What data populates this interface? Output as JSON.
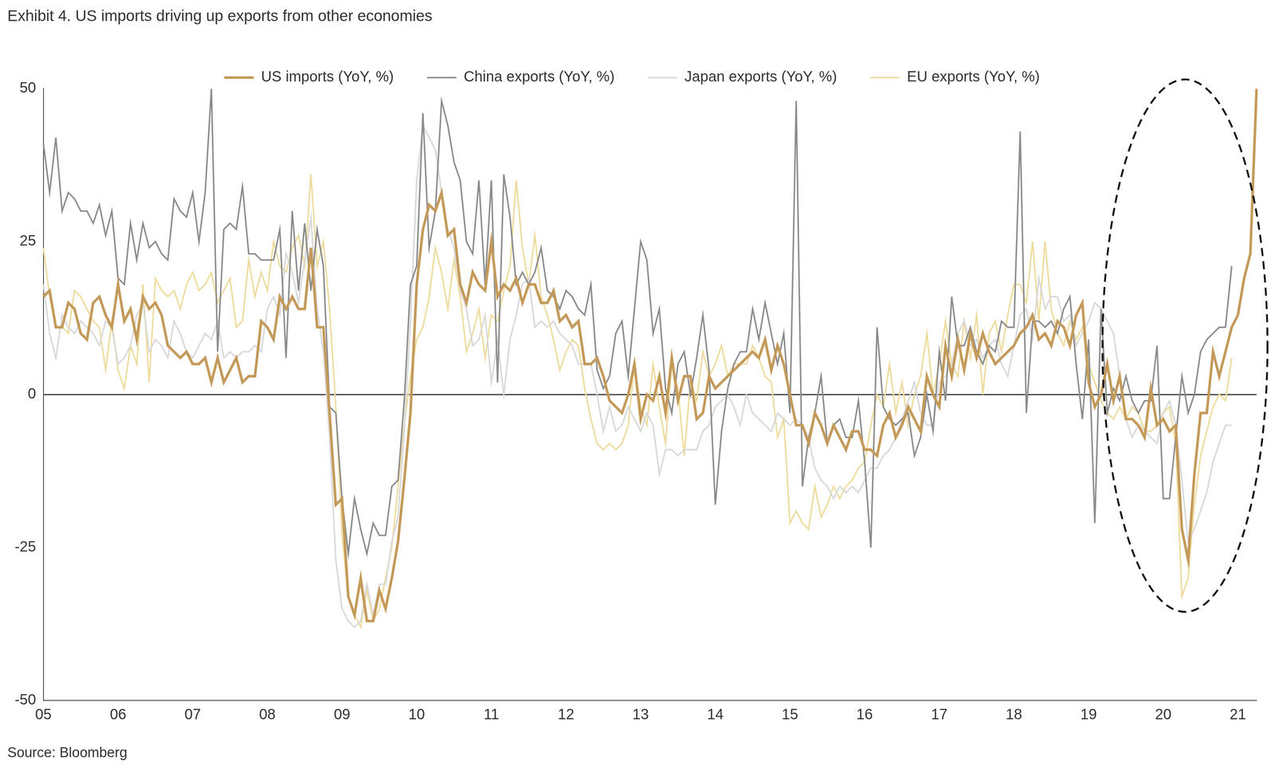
{
  "chart_data": {
    "type": "line",
    "title": "Exhibit 4. US imports driving up exports from other economies",
    "source": "Source: Bloomberg",
    "legend": "top",
    "grid": false,
    "ylim": [
      -50,
      50
    ],
    "yticks": [
      -50,
      -25,
      0,
      25,
      50
    ],
    "categories": [
      "05",
      null,
      null,
      null,
      null,
      null,
      null,
      null,
      null,
      null,
      null,
      null,
      "06",
      null,
      null,
      null,
      null,
      null,
      null,
      null,
      null,
      null,
      null,
      null,
      "07",
      null,
      null,
      null,
      null,
      null,
      null,
      null,
      null,
      null,
      null,
      null,
      "08",
      null,
      null,
      null,
      null,
      null,
      null,
      null,
      null,
      null,
      null,
      null,
      "09",
      null,
      null,
      null,
      null,
      null,
      null,
      null,
      null,
      null,
      null,
      null,
      "10",
      null,
      null,
      null,
      null,
      null,
      null,
      null,
      null,
      null,
      null,
      null,
      "11",
      null,
      null,
      null,
      null,
      null,
      null,
      null,
      null,
      null,
      null,
      null,
      "12",
      null,
      null,
      null,
      null,
      null,
      null,
      null,
      null,
      null,
      null,
      null,
      "13",
      null,
      null,
      null,
      null,
      null,
      null,
      null,
      null,
      null,
      null,
      null,
      "14",
      null,
      null,
      null,
      null,
      null,
      null,
      null,
      null,
      null,
      null,
      null,
      "15",
      null,
      null,
      null,
      null,
      null,
      null,
      null,
      null,
      null,
      null,
      null,
      "16",
      null,
      null,
      null,
      null,
      null,
      null,
      null,
      null,
      null,
      null,
      null,
      "17",
      null,
      null,
      null,
      null,
      null,
      null,
      null,
      null,
      null,
      null,
      null,
      "18",
      null,
      null,
      null,
      null,
      null,
      null,
      null,
      null,
      null,
      null,
      null,
      "19",
      null,
      null,
      null,
      null,
      null,
      null,
      null,
      null,
      null,
      null,
      null,
      "20",
      null,
      null,
      null,
      null,
      null,
      null,
      null,
      null,
      null,
      null,
      null,
      "21",
      null,
      null,
      null
    ],
    "series": [
      {
        "name": "EU exports (YoY, %)",
        "color": "#eedc9f",
        "values": [
          24,
          16,
          11,
          11,
          10,
          17,
          16,
          14,
          12,
          11,
          4,
          12,
          4,
          1,
          8,
          5,
          18,
          2,
          19,
          17,
          16,
          17,
          14,
          18,
          20,
          17,
          18,
          20,
          15,
          17,
          19,
          11,
          12,
          22,
          16,
          20,
          17,
          25,
          21,
          20,
          24,
          26,
          21,
          36,
          21,
          25,
          14,
          -2,
          -23,
          -33,
          -36,
          -38,
          -32,
          -37,
          -35,
          -30,
          -25,
          -15,
          -5,
          3,
          9,
          11,
          16,
          24,
          20,
          14,
          22,
          16,
          7,
          10,
          14,
          6,
          13,
          12,
          17,
          21,
          35,
          24,
          18,
          26,
          16,
          13,
          9,
          4,
          7,
          9,
          8,
          1,
          -4,
          -8,
          -9,
          -8,
          -9,
          -8,
          -5,
          5,
          -2,
          -5,
          5,
          -2,
          -8,
          5,
          1,
          -10,
          2,
          -1,
          7,
          3,
          5,
          8,
          3,
          5,
          5,
          5,
          8,
          6,
          3,
          2,
          -7,
          -4,
          -21,
          -19,
          -21,
          -22,
          -15,
          -20,
          -18,
          -15,
          -17,
          -15,
          -14,
          -12,
          -11,
          -5,
          0,
          -2,
          5,
          -3,
          2,
          -5,
          0,
          3,
          10,
          0,
          5,
          12,
          5,
          3,
          12,
          6,
          13,
          0,
          10,
          12,
          7,
          13,
          18,
          18,
          15,
          25,
          12,
          25,
          14,
          10,
          8,
          12,
          9,
          11,
          5,
          2,
          -1,
          -3,
          -4,
          -2,
          -4,
          -2,
          -3,
          -6,
          -6,
          -5,
          -3,
          -2,
          -8,
          -33,
          -30,
          -18,
          -10,
          -6,
          -2,
          0,
          -1,
          6,
          null,
          null,
          null,
          null
        ]
      },
      {
        "name": "Japan exports (YoY, %)",
        "color": "#d9d9d9",
        "values": [
          18,
          10,
          6,
          13,
          11,
          10,
          12,
          11,
          10,
          8,
          12,
          11,
          5,
          6,
          8,
          13,
          15,
          7,
          9,
          8,
          6,
          12,
          10,
          7,
          6,
          8,
          10,
          9,
          12,
          6,
          7,
          6,
          7,
          7,
          8,
          7,
          14,
          16,
          13,
          23,
          20,
          15,
          22,
          29,
          14,
          7,
          -7,
          -27,
          -35,
          -37,
          -38,
          -37,
          -31,
          -36,
          -31,
          -31,
          -24,
          -20,
          -6,
          12,
          35,
          44,
          42,
          40,
          33,
          27,
          24,
          17,
          14,
          8,
          9,
          13,
          2,
          9,
          0,
          9,
          13,
          18,
          19,
          11,
          12,
          11,
          12,
          10,
          9,
          8,
          5,
          5,
          5,
          0,
          -6,
          -2,
          -6,
          -5,
          -2,
          -4,
          -6,
          -3,
          -5,
          -13,
          -9,
          -9,
          -10,
          -9,
          -9,
          -9,
          -6,
          -5,
          -2,
          -1,
          0,
          -2,
          -5,
          0,
          -3,
          -4,
          -5,
          -6,
          -3,
          -4,
          -5,
          -4,
          -5,
          -7,
          -12,
          -14,
          -15,
          -17,
          -15,
          -16,
          -15,
          -16,
          -14,
          -12,
          -12,
          -10,
          -9,
          -7,
          -4,
          -1,
          2,
          -3,
          -5,
          -5,
          2,
          3,
          5,
          10,
          12,
          8,
          9,
          6,
          8,
          9,
          5,
          3,
          8,
          13,
          14,
          9,
          19,
          14,
          16,
          16,
          12,
          13,
          8,
          10,
          12,
          15,
          14,
          12,
          10,
          3,
          -4,
          -7,
          -5,
          -6,
          -7,
          -8,
          -3,
          -1,
          -5,
          -14,
          -24,
          -22,
          -19,
          -16,
          -11,
          -8,
          -5,
          -5,
          null,
          null,
          null,
          null
        ]
      },
      {
        "name": "China exports (YoY, %)",
        "color": "#8c8c8c",
        "values": [
          41,
          33,
          42,
          30,
          33,
          32,
          30,
          30,
          28,
          31,
          26,
          30,
          19,
          18,
          28,
          22,
          28,
          24,
          25,
          23,
          22,
          32,
          30,
          29,
          33,
          25,
          33,
          50,
          7,
          27,
          28,
          27,
          34,
          23,
          23,
          22,
          22,
          22,
          27,
          6,
          30,
          17,
          28,
          17,
          27,
          21,
          -2,
          -3,
          -17,
          -26,
          -17,
          -22,
          -26,
          -21,
          -23,
          -23,
          -15,
          -14,
          -1,
          18,
          21,
          46,
          24,
          30,
          48,
          44,
          38,
          35,
          25,
          23,
          35,
          18,
          35,
          2,
          36,
          29,
          18,
          20,
          18,
          20,
          24,
          17,
          16,
          14,
          17,
          16,
          14,
          13,
          18,
          4,
          1,
          3,
          10,
          12,
          3,
          14,
          25,
          22,
          10,
          14,
          1,
          -3,
          5,
          7,
          0,
          6,
          13,
          4,
          -18,
          -6,
          1,
          5,
          7,
          7,
          14,
          9,
          15,
          10,
          5,
          10,
          -3,
          48,
          -15,
          -7,
          -3,
          3,
          -8,
          -5,
          -4,
          -7,
          -7,
          -1,
          -11,
          -25,
          11,
          -2,
          -4,
          -5,
          -4,
          -3,
          -10,
          -7,
          0,
          -6,
          7,
          -1,
          16,
          8,
          8,
          11,
          7,
          5,
          8,
          7,
          12,
          11,
          11,
          43,
          -3,
          12,
          12,
          11,
          12,
          10,
          14,
          16,
          5,
          -4,
          9,
          -21,
          14,
          -3,
          1,
          -1,
          3,
          -1,
          -3,
          -1,
          -1,
          8,
          -17,
          -17,
          -7,
          3,
          -3,
          0,
          7,
          9,
          10,
          11,
          11,
          21,
          null,
          null,
          null,
          null
        ]
      },
      {
        "name": "US imports (YoY, %)",
        "color": "#c49a5a",
        "values": [
          16,
          17,
          11,
          11,
          15,
          14,
          10,
          9,
          15,
          16,
          13,
          11,
          18,
          12,
          14,
          9,
          16,
          14,
          15,
          13,
          8,
          7,
          6,
          7,
          5,
          5,
          6,
          2,
          6,
          2,
          4,
          6,
          2,
          3,
          3,
          12,
          11,
          9,
          16,
          14,
          16,
          14,
          14,
          24,
          11,
          11,
          -3,
          -18,
          -17,
          -33,
          -36,
          -30,
          -37,
          -37,
          -32,
          -35,
          -30,
          -24,
          -14,
          -3,
          18,
          27,
          31,
          30,
          33,
          26,
          27,
          18,
          15,
          20,
          18,
          17,
          25,
          16,
          18,
          17,
          19,
          15,
          18,
          18,
          15,
          15,
          17,
          12,
          13,
          11,
          12,
          5,
          5,
          6,
          3,
          -1,
          -2,
          -3,
          0,
          5,
          -4,
          0,
          -1,
          3,
          -3,
          6,
          -1,
          3,
          3,
          -4,
          -3,
          3,
          1,
          2,
          3,
          4,
          5,
          6,
          7,
          6,
          9,
          4,
          8,
          5,
          0,
          -5,
          -5,
          -8,
          -3,
          -5,
          -8,
          -5,
          -7,
          -9,
          -6,
          -6,
          -9,
          -9,
          -10,
          -5,
          -3,
          -7,
          -5,
          -2,
          -4,
          -6,
          3,
          0,
          -2,
          8,
          3,
          9,
          4,
          10,
          6,
          10,
          7,
          5,
          6,
          7,
          8,
          10,
          11,
          13,
          9,
          10,
          8,
          12,
          11,
          8,
          13,
          15,
          2,
          -2,
          0,
          5,
          -1,
          3,
          -4,
          -4,
          -5,
          -7,
          1,
          -5,
          -4,
          -6,
          -5,
          -22,
          -27,
          -13,
          -3,
          -3,
          7,
          3,
          7,
          11,
          13,
          19,
          23,
          50
        ]
      }
    ]
  }
}
